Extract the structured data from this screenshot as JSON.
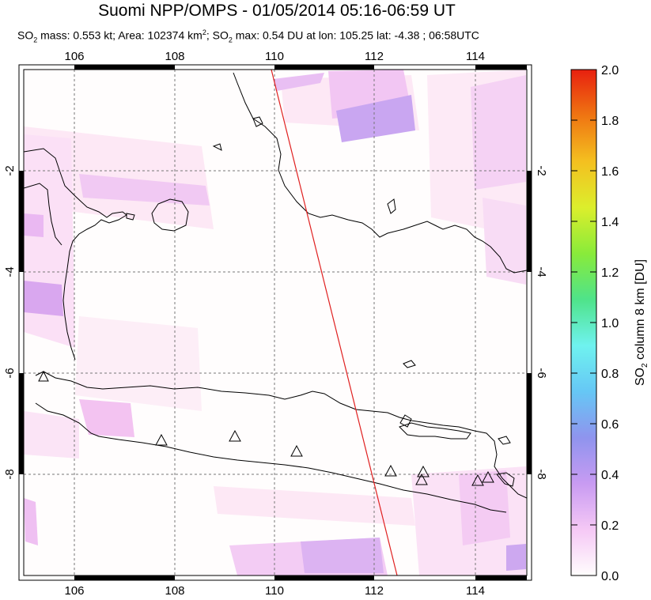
{
  "title": "Suomi NPP/OMPS - 01/05/2014 05:16-06:59 UT",
  "subtitle": {
    "part1": "SO",
    "sub1": "2",
    "part2": " mass: 0.553 kt; Area: 102374 km",
    "sup1": "2",
    "part3": "; SO",
    "sub2": "2",
    "part4": " max: 0.54 DU at lon: 105.25 lat: -4.38 ; 06:58UTC"
  },
  "map": {
    "lon_ticks": [
      "106",
      "108",
      "110",
      "112",
      "114"
    ],
    "lat_ticks": [
      "-2",
      "-4",
      "-6",
      "-8"
    ],
    "volcano_marker": "triangle-icon",
    "orbit_line_color": "#e02020",
    "grid": true
  },
  "colorbar": {
    "label_pre": "SO",
    "label_sub": "2",
    "label_post": " column 8 km [DU]",
    "ticks": [
      "0.0",
      "0.2",
      "0.4",
      "0.6",
      "0.8",
      "1.0",
      "1.2",
      "1.4",
      "1.6",
      "1.8",
      "2.0"
    ],
    "colors": [
      "#fffdfd",
      "#f5c8f5",
      "#c89bf2",
      "#8f94ee",
      "#66c7f5",
      "#6ff2ef",
      "#4fe38a",
      "#89eb3a",
      "#dcee2c",
      "#f4c020",
      "#ef7512",
      "#e8200f"
    ]
  }
}
